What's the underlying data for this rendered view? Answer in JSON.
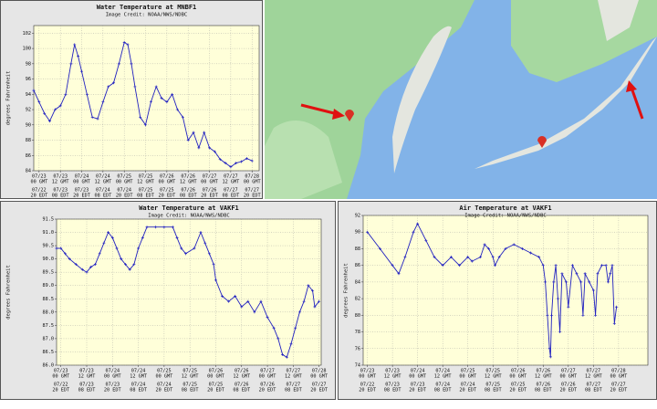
{
  "chart_data": [
    {
      "type": "line",
      "title": "Water Temperature at MNBF1",
      "subtitle": "Image Credit: NOAA/NWS/NDBC",
      "ylabel": "degrees Fahrenheit",
      "color": "#2020c0",
      "grid": true,
      "xlim": [
        -3,
        124
      ],
      "ylim": [
        84,
        103
      ],
      "yticks": [
        84,
        86,
        88,
        90,
        92,
        94,
        96,
        98,
        100,
        102
      ],
      "xticks": [
        {
          "value": 0,
          "label": "07/23"
        },
        {
          "value": 12,
          "label": "07/23"
        },
        {
          "value": 24,
          "label": "07/24"
        },
        {
          "value": 36,
          "label": "07/24"
        },
        {
          "value": 48,
          "label": "07/25"
        },
        {
          "value": 60,
          "label": "07/25"
        },
        {
          "value": 72,
          "label": "07/26"
        },
        {
          "value": 84,
          "label": "07/26"
        },
        {
          "value": 96,
          "label": "07/27"
        },
        {
          "value": 108,
          "label": "07/27"
        },
        {
          "value": 120,
          "label": "07/28"
        }
      ],
      "xtick_times": [
        "00 GMT",
        "12 GMT",
        "00 GMT",
        "12 GMT",
        "00 GMT",
        "12 GMT",
        "00 GMT",
        "12 GMT",
        "00 GMT",
        "12 GMT",
        "00 GMT"
      ],
      "xtick_local_dates": [
        "07/22",
        "07/23",
        "07/23",
        "07/24",
        "07/24",
        "07/25",
        "07/25",
        "07/26",
        "07/26",
        "07/27",
        "07/27"
      ],
      "xtick_local_times": [
        "20 EDT",
        "08 EDT",
        "20 EDT",
        "08 EDT",
        "20 EDT",
        "08 EDT",
        "20 EDT",
        "08 EDT",
        "20 EDT",
        "08 EDT",
        "20 EDT"
      ],
      "x": [
        -3,
        0,
        3,
        6,
        9,
        12,
        15,
        18,
        20,
        22,
        24,
        27,
        30,
        33,
        36,
        39,
        42,
        45,
        48,
        50,
        52,
        54,
        57,
        60,
        63,
        66,
        69,
        72,
        75,
        78,
        81,
        84,
        87,
        90,
        93,
        96,
        99,
        102,
        105,
        108,
        111,
        114,
        117,
        120
      ],
      "values": [
        94.5,
        93,
        91.5,
        90.5,
        92,
        92.5,
        94,
        98,
        100.5,
        99,
        97,
        94,
        91,
        90.8,
        93,
        95,
        95.5,
        98,
        100.8,
        100.5,
        98,
        95,
        91,
        90,
        93,
        95,
        93.5,
        93,
        94,
        92,
        91,
        88,
        89,
        87,
        89,
        87,
        86.5,
        85.5,
        85,
        84.5,
        85,
        85.2,
        85.6,
        85.3
      ]
    },
    {
      "type": "line",
      "title": "Water Temperature at VAKF1",
      "subtitle": "Image Credit: NOAA/NWS/NDBC",
      "ylabel": "degrees Fahrenheit",
      "color": "#2020c0",
      "grid": true,
      "xlim": [
        -2,
        121
      ],
      "ylim": [
        86,
        91.5
      ],
      "yticks": [
        {
          "value": 86,
          "label": "86.0"
        },
        {
          "value": 86.5,
          "label": "86.5"
        },
        {
          "value": 87,
          "label": "87.0"
        },
        {
          "value": 87.5,
          "label": "87.5"
        },
        {
          "value": 88,
          "label": "88.0"
        },
        {
          "value": 88.5,
          "label": "88.5"
        },
        {
          "value": 89,
          "label": "89.0"
        },
        {
          "value": 89.5,
          "label": "89.5"
        },
        {
          "value": 90,
          "label": "90.0"
        },
        {
          "value": 90.5,
          "label": "90.5"
        },
        {
          "value": 91,
          "label": "91.0"
        },
        {
          "value": 91.5,
          "label": "91.5"
        }
      ],
      "xticks": [
        {
          "value": 0,
          "label": "07/23"
        },
        {
          "value": 12,
          "label": "07/23"
        },
        {
          "value": 24,
          "label": "07/24"
        },
        {
          "value": 36,
          "label": "07/24"
        },
        {
          "value": 48,
          "label": "07/25"
        },
        {
          "value": 60,
          "label": "07/25"
        },
        {
          "value": 72,
          "label": "07/26"
        },
        {
          "value": 84,
          "label": "07/26"
        },
        {
          "value": 96,
          "label": "07/27"
        },
        {
          "value": 108,
          "label": "07/27"
        },
        {
          "value": 120,
          "label": "07/28"
        }
      ],
      "xtick_times": [
        "00 GMT",
        "12 GMT",
        "00 GMT",
        "12 GMT",
        "00 GMT",
        "12 GMT",
        "00 GMT",
        "12 GMT",
        "00 GMT",
        "12 GMT",
        "00 GMT"
      ],
      "xtick_local_dates": [
        "07/22",
        "07/23",
        "07/23",
        "07/24",
        "07/24",
        "07/25",
        "07/25",
        "07/26",
        "07/26",
        "07/27",
        "07/27"
      ],
      "xtick_local_times": [
        "20 EDT",
        "08 EDT",
        "20 EDT",
        "08 EDT",
        "20 EDT",
        "08 EDT",
        "20 EDT",
        "08 EDT",
        "20 EDT",
        "08 EDT",
        "20 EDT"
      ],
      "x": [
        -2,
        0,
        2,
        4,
        7,
        10,
        12,
        14,
        16,
        18,
        20,
        22,
        24,
        26,
        28,
        30,
        32,
        34,
        36,
        38,
        40,
        44,
        48,
        52,
        54,
        56,
        58,
        62,
        65,
        67,
        69,
        71,
        72,
        75,
        78,
        81,
        84,
        87,
        90,
        93,
        96,
        99,
        101,
        103,
        105,
        107,
        109,
        111,
        113,
        115,
        117,
        118,
        120
      ],
      "values": [
        90.4,
        90.4,
        90.2,
        90.0,
        89.8,
        89.6,
        89.5,
        89.7,
        89.8,
        90.2,
        90.6,
        91.0,
        90.8,
        90.4,
        90.0,
        89.8,
        89.6,
        89.8,
        90.4,
        90.8,
        91.2,
        91.2,
        91.2,
        91.2,
        90.8,
        90.4,
        90.2,
        90.4,
        91.0,
        90.6,
        90.2,
        89.8,
        89.2,
        88.6,
        88.4,
        88.6,
        88.2,
        88.4,
        88.0,
        88.4,
        87.8,
        87.4,
        87.0,
        86.4,
        86.3,
        86.8,
        87.4,
        88.0,
        88.4,
        89.0,
        88.8,
        88.2,
        88.4
      ]
    },
    {
      "type": "line",
      "title": "Air Temperature at VAKF1",
      "subtitle": "Image Credit: NOAA/NWS/NDBC",
      "ylabel": "degrees Fahrenheit",
      "color": "#2020c0",
      "grid": true,
      "xlim": [
        -2,
        134
      ],
      "ylim": [
        74,
        92
      ],
      "yticks": [
        74,
        76,
        78,
        80,
        82,
        84,
        86,
        88,
        90,
        92
      ],
      "xticks": [
        {
          "value": 0,
          "label": "07/23"
        },
        {
          "value": 12,
          "label": "07/23"
        },
        {
          "value": 24,
          "label": "07/24"
        },
        {
          "value": 36,
          "label": "07/24"
        },
        {
          "value": 48,
          "label": "07/25"
        },
        {
          "value": 60,
          "label": "07/25"
        },
        {
          "value": 72,
          "label": "07/26"
        },
        {
          "value": 84,
          "label": "07/26"
        },
        {
          "value": 96,
          "label": "07/27"
        },
        {
          "value": 108,
          "label": "07/27"
        },
        {
          "value": 120,
          "label": "07/28"
        }
      ],
      "xtick_times": [
        "00 GMT",
        "12 GMT",
        "00 GMT",
        "12 GMT",
        "00 GMT",
        "12 GMT",
        "00 GMT",
        "12 GMT",
        "00 GMT",
        "12 GMT",
        "00 GMT"
      ],
      "xtick_local_dates": [
        "07/22",
        "07/23",
        "07/23",
        "07/24",
        "07/24",
        "07/25",
        "07/25",
        "07/26",
        "07/26",
        "07/27",
        "07/27"
      ],
      "xtick_local_times": [
        "20 EDT",
        "08 EDT",
        "20 EDT",
        "08 EDT",
        "20 EDT",
        "08 EDT",
        "20 EDT",
        "08 EDT",
        "20 EDT",
        "08 EDT",
        "20 EDT"
      ],
      "x": [
        0,
        6,
        12,
        15,
        18,
        22,
        24,
        28,
        32,
        36,
        40,
        44,
        48,
        50,
        54,
        56,
        58,
        60,
        61,
        63,
        66,
        70,
        74,
        78,
        82,
        84,
        85,
        86,
        87,
        87.5,
        88,
        89,
        90,
        91,
        92,
        93,
        95,
        96,
        98,
        100,
        102,
        103,
        104,
        106,
        108,
        109,
        110,
        112,
        114,
        115,
        116,
        117,
        118,
        119
      ],
      "values": [
        90,
        88,
        86,
        85,
        87,
        90,
        91,
        89,
        87,
        86,
        87,
        86,
        87,
        86.5,
        87,
        88.5,
        88,
        87,
        86,
        87,
        88,
        88.5,
        88,
        87.5,
        87,
        86,
        84,
        80,
        76,
        75,
        80,
        84,
        86,
        82,
        78,
        85,
        84,
        81,
        86,
        85,
        84,
        80,
        85,
        84,
        83,
        80,
        85,
        86,
        86,
        84,
        85,
        86,
        79,
        81
      ]
    }
  ]
}
